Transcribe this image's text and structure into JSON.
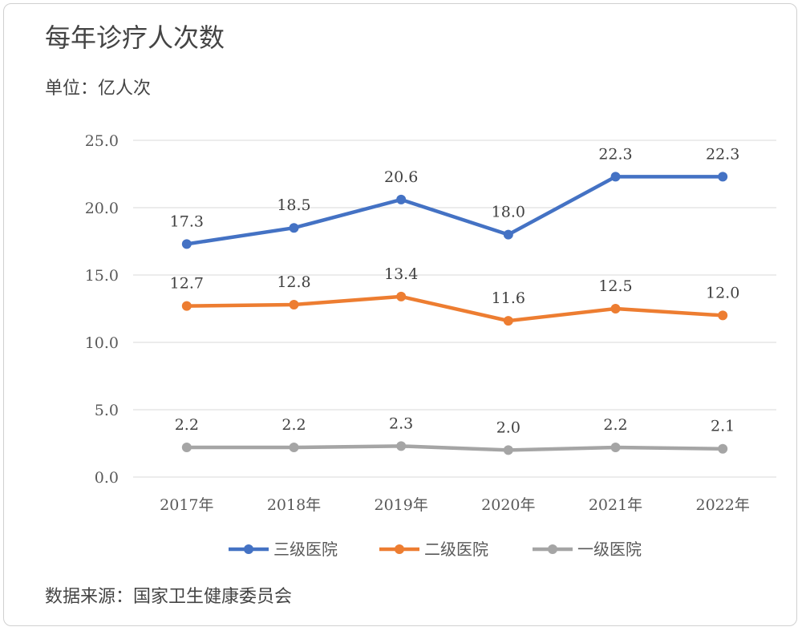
{
  "chart_data": {
    "type": "line",
    "title": "每年诊疗人次数",
    "unit_label": "单位：亿人次",
    "source": "数据来源：国家卫生健康委员会",
    "categories": [
      "2017年",
      "2018年",
      "2019年",
      "2020年",
      "2021年",
      "2022年"
    ],
    "ylim": [
      0,
      25
    ],
    "yticks": [
      "0.0",
      "5.0",
      "10.0",
      "15.0",
      "20.0",
      "25.0"
    ],
    "grid": true,
    "legend_position": "bottom",
    "series": [
      {
        "name": "三级医院",
        "color": "#4472C4",
        "values": [
          17.3,
          18.5,
          20.6,
          18.0,
          22.3,
          22.3
        ]
      },
      {
        "name": "二级医院",
        "color": "#ED7D31",
        "values": [
          12.7,
          12.8,
          13.4,
          11.6,
          12.5,
          12.0
        ]
      },
      {
        "name": "一级医院",
        "color": "#A5A5A5",
        "values": [
          2.2,
          2.2,
          2.3,
          2.0,
          2.2,
          2.1
        ]
      }
    ]
  }
}
